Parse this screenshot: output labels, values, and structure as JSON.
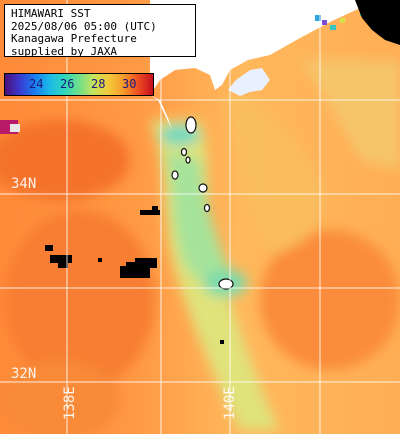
{
  "title_lines": [
    "HIMAWARI SST",
    "2025/08/06 05:00 (UTC)",
    "Kanagawa Prefecture",
    "supplied by JAXA"
  ],
  "legend": {
    "ticks": [
      "24",
      "26",
      "28",
      "30"
    ],
    "gradient_colors": [
      "#4b0f7a",
      "#3a3ad0",
      "#1a7cf0",
      "#1cb9e8",
      "#2dd6bd",
      "#6ee08a",
      "#c8e35c",
      "#f3c93a",
      "#f49a2a",
      "#ec4d22",
      "#c4101e"
    ]
  },
  "grid": {
    "lat_labels": [
      "34N",
      "32N"
    ],
    "lon_labels": [
      "138E",
      "140E"
    ]
  },
  "colors": {
    "sea_warm": "#ff8c3a",
    "sea_warm_deep": "#f27a32",
    "sea_mid": "#ffb35a",
    "sea_cool": "#d8e37a",
    "sea_cooler": "#8fe0a0",
    "land": "#ffffff",
    "cloud": "#000000",
    "grid_line": "#ffffff"
  }
}
